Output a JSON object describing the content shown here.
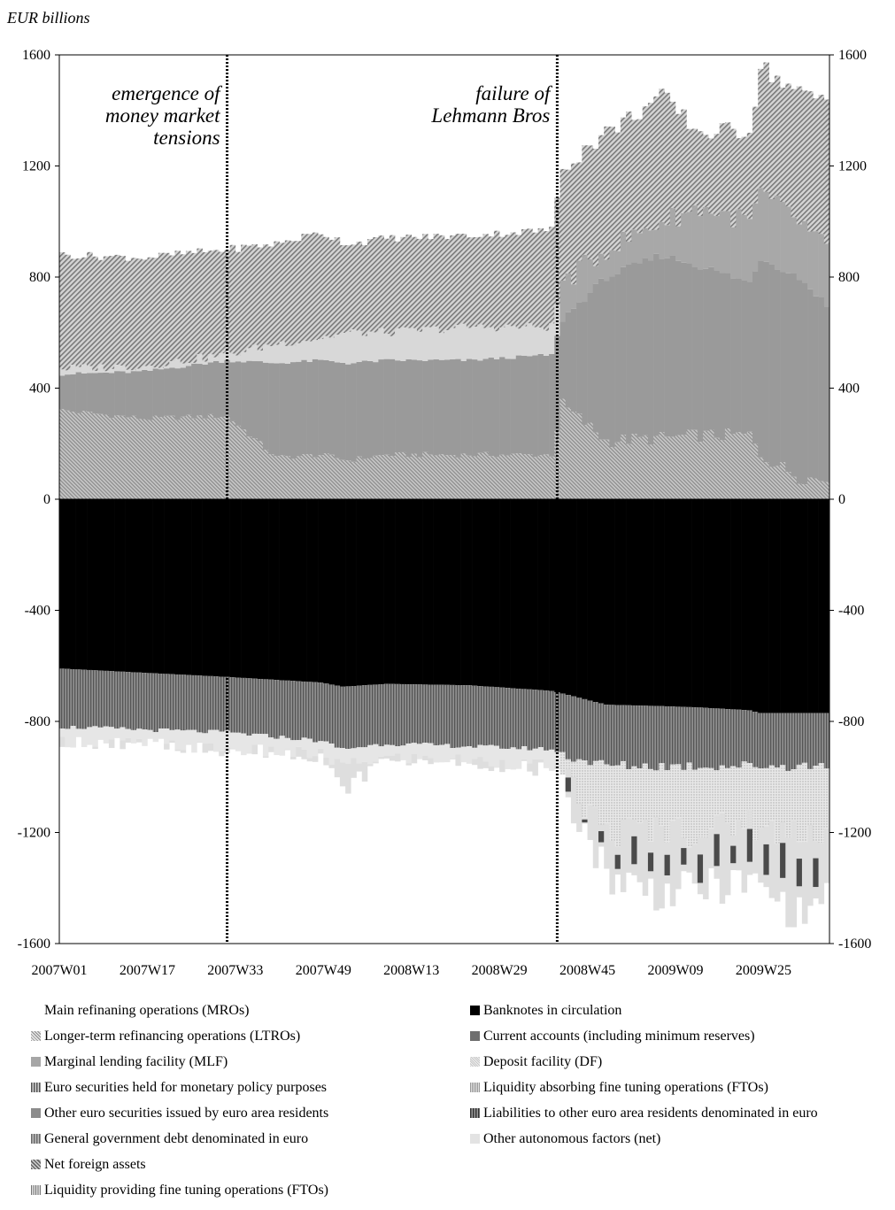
{
  "unit_label": "EUR billions",
  "chart_data": {
    "type": "bar",
    "stacked": true,
    "y_unit": "EUR billions",
    "ylim": [
      -1600,
      1600
    ],
    "yticks": [
      1600,
      1200,
      800,
      400,
      0,
      -400,
      -800,
      -1200,
      -1600
    ],
    "ytick_labels": [
      "1600",
      "1200",
      "800",
      "400",
      "0",
      "-400",
      "-800",
      "-1200",
      "-1600"
    ],
    "secondary_axis": true,
    "x_tick_labels": [
      "2007W01",
      "2007W17",
      "2007W33",
      "2007W49",
      "2008W13",
      "2008W29",
      "2008W45",
      "2009W09",
      "2009W25"
    ],
    "x_tick_positions": [
      1,
      17,
      33,
      49,
      65,
      81,
      97,
      113,
      129
    ],
    "n_weeks": 140,
    "annotations": [
      {
        "week": 31,
        "text": [
          "emergence of",
          "money market",
          "tensions"
        ]
      },
      {
        "week": 91,
        "text": [
          "failure of",
          "Lehmann Bros"
        ]
      }
    ],
    "anchors_up": {
      "w": [
        1,
        16,
        31,
        40,
        48,
        53,
        60,
        75,
        90,
        92,
        100,
        110,
        117,
        126,
        128,
        135,
        140
      ],
      "mro": [
        320,
        290,
        300,
        150,
        160,
        140,
        160,
        160,
        160,
        340,
        210,
        220,
        230,
        230,
        160,
        80,
        70
      ],
      "lt_top": [
        450,
        460,
        500,
        490,
        500,
        490,
        500,
        500,
        520,
        650,
        800,
        880,
        840,
        780,
        870,
        800,
        700
      ],
      "mlf_top": [
        470,
        480,
        520,
        560,
        580,
        600,
        600,
        620,
        620,
        780,
        900,
        1000,
        1050,
        1000,
        1100,
        1000,
        900
      ],
      "total": [
        880,
        870,
        900,
        920,
        960,
        920,
        940,
        950,
        970,
        1200,
        1320,
        1450,
        1320,
        1330,
        1560,
        1460,
        1440
      ]
    },
    "anchors_down": {
      "w": [
        1,
        16,
        31,
        48,
        52,
        60,
        75,
        90,
        92,
        100,
        110,
        117,
        126,
        128,
        135,
        140
      ],
      "banknotes": [
        -610,
        -625,
        -640,
        -660,
        -675,
        -665,
        -670,
        -690,
        -700,
        -740,
        -745,
        -750,
        -760,
        -770,
        -770,
        -770
      ],
      "current": [
        -820,
        -830,
        -840,
        -870,
        -900,
        -880,
        -890,
        -900,
        -920,
        -960,
        -960,
        -960,
        -960,
        -960,
        -960,
        -960
      ],
      "df_bottom": [
        -870,
        -880,
        -900,
        -920,
        -960,
        -930,
        -940,
        -960,
        -1000,
        -1200,
        -1180,
        -1200,
        -1150,
        -1200,
        -1180,
        -1200
      ],
      "total_bottom": [
        -870,
        -880,
        -900,
        -920,
        -1050,
        -930,
        -940,
        -980,
        -1020,
        -1350,
        -1420,
        -1400,
        -1380,
        -1400,
        -1500,
        -1430
      ]
    },
    "legend": [
      {
        "label": "Main refinaning operations (MROs)",
        "swatch": "none"
      },
      {
        "label": "Longer-term refinancing operations (LTROs)",
        "swatch": "stripe-fine"
      },
      {
        "label": "Marginal lending facility (MLF)",
        "swatch": "solid-mid"
      },
      {
        "label": "Euro securities held for monetary policy purposes",
        "swatch": "vstripe"
      },
      {
        "label": "Other euro securities issued by euro area residents",
        "swatch": "gray-dark"
      },
      {
        "label": "General government debt denominated in euro",
        "swatch": "vstripe2"
      },
      {
        "label": "Net foreign assets",
        "swatch": "stripe-dense"
      },
      {
        "label": "Liquidity providing fine tuning operations (FTOs)",
        "swatch": "grid"
      },
      {
        "label": "Banknotes in circulation",
        "swatch": "black"
      },
      {
        "label": "Current accounts (including minimum reserves)",
        "swatch": "current"
      },
      {
        "label": "Deposit facility (DF)",
        "swatch": "dotted"
      },
      {
        "label": "Liquidity absorbing fine tuning operations (FTOs)",
        "swatch": "liqabs"
      },
      {
        "label": "Liabilities to other euro area residents denominated in euro",
        "swatch": "liab"
      },
      {
        "label": "Other autonomous factors (net)",
        "swatch": "other"
      }
    ],
    "colors": {
      "mro": "#ffffff",
      "ltro": "#9a9a9a",
      "mlf": "#b4b4b4",
      "net_foreign": "#8c8c8c",
      "banknotes": "#000000",
      "current": "#6f6f6f",
      "df": "#d6d6d6",
      "other_autonomous": "#e3e3e3",
      "liabilities": "#3b3b3b"
    }
  }
}
